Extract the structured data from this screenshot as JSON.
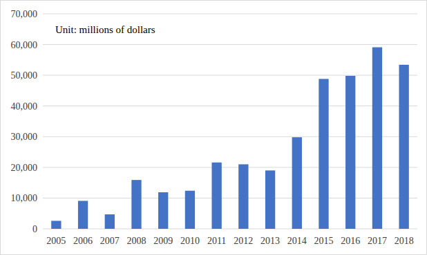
{
  "chart_data": {
    "type": "bar",
    "annotation": "Unit: millions of dollars",
    "categories": [
      "2005",
      "2006",
      "2007",
      "2008",
      "2009",
      "2010",
      "2011",
      "2012",
      "2013",
      "2014",
      "2015",
      "2016",
      "2017",
      "2018"
    ],
    "values": [
      2600,
      9100,
      4700,
      15900,
      11900,
      12400,
      21600,
      21000,
      19000,
      29800,
      48800,
      49800,
      59100,
      53400
    ],
    "color": "#4472c4",
    "ylim": [
      0,
      70000
    ],
    "yticks": [
      0,
      {
        "value": 10000,
        "label": "10,000"
      },
      {
        "value": 20000,
        "label": "20,000"
      },
      {
        "value": 30000,
        "label": "30,000"
      },
      {
        "value": 40000,
        "label": "40,000"
      },
      {
        "value": 50000,
        "label": "50,000"
      },
      {
        "value": 60000,
        "label": "60,000"
      },
      {
        "value": 70000,
        "label": "70,000"
      }
    ],
    "grid": true
  }
}
